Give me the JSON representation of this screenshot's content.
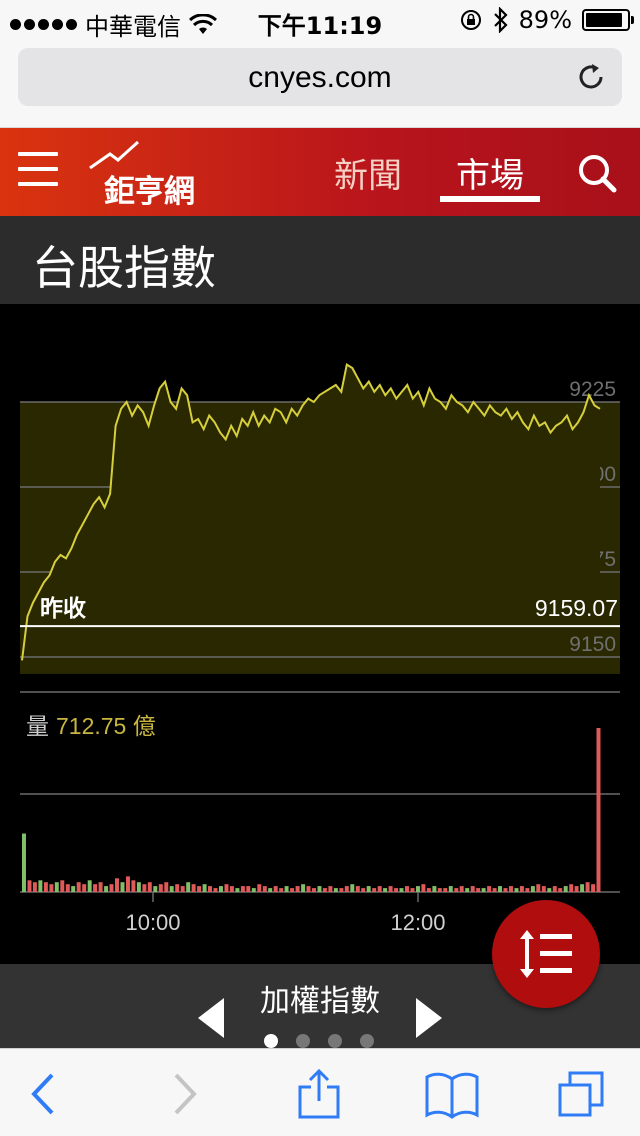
{
  "status_bar": {
    "carrier": "中華電信",
    "time": "下午11:19",
    "battery": "89%",
    "battery_level": 0.89
  },
  "browser": {
    "url": "cnyes.com"
  },
  "site_header": {
    "logo_text": "鉅亨網",
    "tabs": [
      {
        "label": "新聞",
        "active": false
      },
      {
        "label": "市場",
        "active": true
      }
    ]
  },
  "page": {
    "title": "台股指數"
  },
  "chart_data": {
    "type": "line",
    "title": "加權指數",
    "y_ticks": [
      "9225",
      "9200",
      "9175",
      "9150"
    ],
    "ylim": [
      9145,
      9245
    ],
    "x_ticks": [
      "10:00",
      "12:00"
    ],
    "reference_label": "昨收",
    "reference_value": "9159.07",
    "series": [
      {
        "values": [
          9149,
          9162,
          9166,
          9169,
          9172,
          9174,
          9178,
          9180,
          9179,
          9182,
          9186,
          9189,
          9192,
          9195,
          9197,
          9194,
          9198,
          9218,
          9223,
          9225,
          9221,
          9224,
          9222,
          9218,
          9224,
          9229,
          9231,
          9225,
          9223,
          9229,
          9227,
          9219,
          9220,
          9217,
          9221,
          9219,
          9216,
          9214,
          9218,
          9215,
          9220,
          9218,
          9222,
          9218,
          9221,
          9219,
          9223,
          9222,
          9219,
          9223,
          9221,
          9224,
          9226,
          9225,
          9227,
          9228,
          9229,
          9230,
          9228,
          9236,
          9235,
          9232,
          9229,
          9231,
          9228,
          9230,
          9227,
          9229,
          9226,
          9228,
          9230,
          9226,
          9228,
          9224,
          9229,
          9226,
          9225,
          9223,
          9227,
          9225,
          9224,
          9222,
          9225,
          9223,
          9221,
          9224,
          9222,
          9221,
          9223,
          9220,
          9222,
          9219,
          9217,
          9221,
          9218,
          9219,
          9216,
          9218,
          9219,
          9221,
          9217,
          9219,
          9222,
          9227,
          9224,
          9223
        ],
        "color": "#d6cf3c"
      }
    ],
    "volume_label": "量",
    "volume_value": "712.75 億",
    "volume": [
      30,
      6,
      5,
      6,
      5,
      4,
      5,
      6,
      4,
      3,
      5,
      4,
      6,
      4,
      5,
      3,
      4,
      7,
      5,
      8,
      6,
      5,
      4,
      5,
      3,
      4,
      5,
      3,
      4,
      3,
      5,
      4,
      3,
      4,
      3,
      2,
      3,
      4,
      3,
      2,
      3,
      3,
      2,
      4,
      3,
      2,
      3,
      2,
      3,
      2,
      3,
      4,
      3,
      2,
      3,
      2,
      3,
      2,
      2,
      3,
      4,
      3,
      2,
      3,
      2,
      3,
      2,
      3,
      2,
      2,
      3,
      2,
      3,
      4,
      2,
      3,
      2,
      2,
      3,
      2,
      3,
      2,
      3,
      2,
      2,
      3,
      2,
      3,
      2,
      3,
      2,
      3,
      2,
      3,
      4,
      3,
      2,
      3,
      2,
      3,
      4,
      3,
      4,
      5,
      4,
      82
    ],
    "colors": {
      "up": "#e05a5a",
      "down": "#7fc068",
      "fill": "#2a2800",
      "grid": "#6b6b6b"
    }
  },
  "chart_nav": {
    "current_index": 0,
    "page_count": 4
  }
}
